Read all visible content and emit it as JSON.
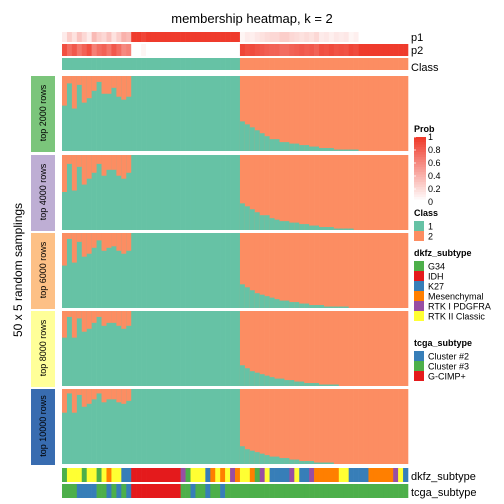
{
  "chart_data": {
    "type": "heatmap",
    "title": "membership heatmap, k = 2",
    "ylabel": "50 x 5 random samplings",
    "n_samples": 70,
    "n_samplings_per_block": 50,
    "top_rows": {
      "labels": [
        "p1",
        "p2",
        "Class"
      ],
      "p1_values": [
        0.1,
        0.25,
        0.15,
        0.3,
        0.2,
        0.1,
        0.35,
        0.25,
        0.2,
        0.3,
        0.15,
        0.25,
        0.4,
        0.35,
        1,
        1,
        0.95,
        1,
        1,
        1,
        1,
        1,
        1,
        1,
        1,
        1,
        1,
        1,
        1,
        1,
        1,
        1,
        1,
        1,
        1,
        1,
        0.05,
        0.1,
        0.08,
        0.12,
        0.15,
        0.18,
        0.2,
        0.2,
        0.25,
        0.25,
        0.2,
        0.18,
        0.15,
        0.18,
        0.15,
        0.2,
        0.1,
        0.12,
        0.08,
        0.12,
        0.1,
        0.12,
        0.05,
        0.08,
        0,
        0,
        0,
        0,
        0,
        0,
        0,
        0,
        0,
        0
      ],
      "class_values": [
        1,
        1,
        1,
        1,
        1,
        1,
        1,
        1,
        1,
        1,
        1,
        1,
        1,
        1,
        1,
        1,
        1,
        1,
        1,
        1,
        1,
        1,
        1,
        1,
        1,
        1,
        1,
        1,
        1,
        1,
        1,
        1,
        1,
        1,
        1,
        1,
        2,
        2,
        2,
        2,
        2,
        2,
        2,
        2,
        2,
        2,
        2,
        2,
        2,
        2,
        2,
        2,
        2,
        2,
        2,
        2,
        2,
        2,
        2,
        2,
        2,
        2,
        2,
        2,
        2,
        2,
        2,
        2,
        2,
        2
      ]
    },
    "blocks": [
      {
        "label": "top 2000 rows",
        "color": "#7BC57B",
        "flip_counts": [
          20,
          5,
          22,
          6,
          18,
          15,
          10,
          4,
          12,
          12,
          8,
          14,
          16,
          14,
          0,
          0,
          0,
          0,
          0,
          0,
          0,
          0,
          0,
          0,
          0,
          0,
          0,
          0,
          0,
          0,
          0,
          0,
          0,
          0,
          0,
          0,
          20,
          18,
          16,
          14,
          12,
          10,
          8,
          8,
          6,
          6,
          5,
          5,
          4,
          4,
          3,
          3,
          2,
          2,
          2,
          1,
          1,
          1,
          1,
          1,
          0,
          0,
          0,
          0,
          0,
          0,
          0,
          0,
          0,
          0
        ]
      },
      {
        "label": "top 4000 rows",
        "color": "#BEAED4",
        "flip_counts": [
          25,
          6,
          24,
          8,
          20,
          16,
          12,
          6,
          14,
          10,
          10,
          14,
          16,
          12,
          0,
          0,
          0,
          0,
          0,
          0,
          0,
          0,
          0,
          0,
          0,
          0,
          0,
          0,
          0,
          0,
          0,
          0,
          0,
          0,
          0,
          0,
          18,
          16,
          14,
          12,
          10,
          10,
          8,
          7,
          6,
          6,
          5,
          5,
          4,
          4,
          3,
          3,
          2,
          2,
          2,
          1,
          1,
          1,
          1,
          0,
          0,
          0,
          0,
          0,
          0,
          0,
          0,
          0,
          0,
          0
        ]
      },
      {
        "label": "top 6000 rows",
        "color": "#FDC086",
        "flip_counts": [
          22,
          4,
          20,
          6,
          16,
          14,
          10,
          5,
          12,
          10,
          9,
          12,
          14,
          12,
          0,
          0,
          0,
          0,
          0,
          0,
          0,
          0,
          0,
          0,
          0,
          0,
          0,
          0,
          0,
          0,
          0,
          0,
          0,
          0,
          0,
          0,
          16,
          14,
          12,
          10,
          9,
          8,
          7,
          6,
          5,
          5,
          4,
          4,
          3,
          3,
          2,
          2,
          2,
          1,
          1,
          1,
          1,
          1,
          0,
          0,
          0,
          0,
          0,
          0,
          0,
          0,
          0,
          0,
          0,
          0
        ]
      },
      {
        "label": "top 8000 rows",
        "color": "#FFFF99",
        "flip_counts": [
          18,
          4,
          18,
          5,
          14,
          12,
          8,
          4,
          10,
          8,
          8,
          10,
          12,
          10,
          0,
          0,
          0,
          0,
          0,
          0,
          0,
          0,
          0,
          0,
          0,
          0,
          0,
          0,
          0,
          0,
          0,
          0,
          0,
          0,
          0,
          0,
          14,
          12,
          10,
          9,
          8,
          7,
          6,
          5,
          5,
          4,
          4,
          3,
          3,
          2,
          2,
          2,
          1,
          1,
          1,
          1,
          0,
          0,
          0,
          0,
          0,
          0,
          0,
          0,
          0,
          0,
          0,
          0,
          0,
          0
        ]
      },
      {
        "label": "top 10000 rows",
        "color": "#386CB0",
        "flip_counts": [
          16,
          3,
          16,
          4,
          12,
          10,
          7,
          3,
          9,
          7,
          7,
          9,
          10,
          8,
          0,
          0,
          0,
          0,
          0,
          0,
          0,
          0,
          0,
          0,
          0,
          0,
          0,
          0,
          0,
          0,
          0,
          0,
          0,
          0,
          0,
          0,
          12,
          10,
          9,
          8,
          7,
          6,
          5,
          5,
          4,
          4,
          3,
          3,
          2,
          2,
          2,
          1,
          1,
          1,
          1,
          0,
          0,
          0,
          0,
          0,
          0,
          0,
          0,
          0,
          0,
          0,
          0,
          0,
          0,
          0
        ]
      }
    ],
    "bottom_rows": {
      "labels": [
        "dkfz_subtype",
        "tcga_subtype"
      ],
      "dkfz_values": [
        "G34",
        "RTK II Classic",
        "RTK II Classic",
        "RTK II Classic",
        "G34",
        "RTK II Classic",
        "RTK II Classic",
        "G34",
        "RTK II Classic",
        "Mesenchymal",
        "RTK II Classic",
        "RTK II Classic",
        "K27",
        "K27",
        "IDH",
        "IDH",
        "IDH",
        "IDH",
        "IDH",
        "IDH",
        "IDH",
        "IDH",
        "IDH",
        "IDH",
        "RTK I PDGFRA",
        "G34",
        "RTK II Classic",
        "RTK II Classic",
        "RTK II Classic",
        "K27",
        "Mesenchymal",
        "RTK II Classic",
        "Mesenchymal",
        "RTK II Classic",
        "RTK I PDGFRA",
        "Mesenchymal",
        "RTK II Classic",
        "RTK II Classic",
        "Mesenchymal",
        "G34",
        "RTK I PDGFRA",
        "RTK II Classic",
        "K27",
        "K27",
        "K27",
        "K27",
        "RTK I PDGFRA",
        "RTK II Classic",
        "K27",
        "K27",
        "RTK I PDGFRA",
        "Mesenchymal",
        "Mesenchymal",
        "Mesenchymal",
        "Mesenchymal",
        "Mesenchymal",
        "RTK II Classic",
        "RTK II Classic",
        "K27",
        "K27",
        "K27",
        "K27",
        "Mesenchymal",
        "Mesenchymal",
        "Mesenchymal",
        "Mesenchymal",
        "Mesenchymal",
        "RTK I PDGFRA",
        "RTK II Classic",
        "K27"
      ],
      "tcga_values": [
        "Cluster #3",
        "Cluster #3",
        "Cluster #3",
        "Cluster #2",
        "Cluster #2",
        "Cluster #2",
        "Cluster #2",
        "Cluster #3",
        "Cluster #3",
        "Cluster #2",
        "Cluster #3",
        "Cluster #2",
        "Cluster #3",
        "Cluster #2",
        "G-CIMP+",
        "G-CIMP+",
        "G-CIMP+",
        "G-CIMP+",
        "G-CIMP+",
        "G-CIMP+",
        "G-CIMP+",
        "G-CIMP+",
        "G-CIMP+",
        "G-CIMP+",
        "Cluster #3",
        "Cluster #3",
        "Cluster #2",
        "Cluster #3",
        "Cluster #3",
        "Cluster #2",
        "Cluster #3",
        "Cluster #3",
        "Cluster #2",
        "Cluster #3",
        "Cluster #3",
        "Cluster #3",
        "Cluster #3",
        "Cluster #3",
        "Cluster #3",
        "Cluster #3",
        "Cluster #3",
        "Cluster #3",
        "Cluster #3",
        "Cluster #3",
        "Cluster #3",
        "Cluster #3",
        "Cluster #3",
        "Cluster #3",
        "Cluster #3",
        "Cluster #3",
        "Cluster #3",
        "Cluster #3",
        "Cluster #3",
        "Cluster #3",
        "Cluster #3",
        "Cluster #3",
        "Cluster #3",
        "Cluster #3",
        "Cluster #3",
        "Cluster #3",
        "Cluster #3",
        "Cluster #3",
        "Cluster #3",
        "Cluster #3",
        "Cluster #3",
        "Cluster #3",
        "Cluster #3",
        "Cluster #3",
        "Cluster #3",
        "Cluster #3"
      ]
    },
    "legends": {
      "prob": {
        "title": "Prob",
        "ticks": [
          "1",
          "0.8",
          "0.6",
          "0.4",
          "0.2",
          "0"
        ]
      },
      "class": {
        "title": "Class",
        "entries": [
          {
            "label": "1",
            "color": "#66C2A5"
          },
          {
            "label": "2",
            "color": "#FC8D62"
          }
        ]
      },
      "dkfz_subtype": {
        "title": "dkfz_subtype",
        "entries": [
          {
            "label": "G34",
            "color": "#4DAF4A"
          },
          {
            "label": "IDH",
            "color": "#E41A1C"
          },
          {
            "label": "K27",
            "color": "#377EB8"
          },
          {
            "label": "Mesenchymal",
            "color": "#FF7F00"
          },
          {
            "label": "RTK I PDGFRA",
            "color": "#984EA3"
          },
          {
            "label": "RTK II Classic",
            "color": "#FFFF33"
          }
        ]
      },
      "tcga_subtype": {
        "title": "tcga_subtype",
        "entries": [
          {
            "label": "Cluster #2",
            "color": "#377EB8"
          },
          {
            "label": "Cluster #3",
            "color": "#4DAF4A"
          },
          {
            "label": "G-CIMP+",
            "color": "#E41A1C"
          }
        ]
      }
    }
  },
  "colors": {
    "class1": "#66C2A5",
    "class2": "#FC8D62",
    "prob_low": "#FFFFFF",
    "prob_high": "#EF3B2C"
  }
}
